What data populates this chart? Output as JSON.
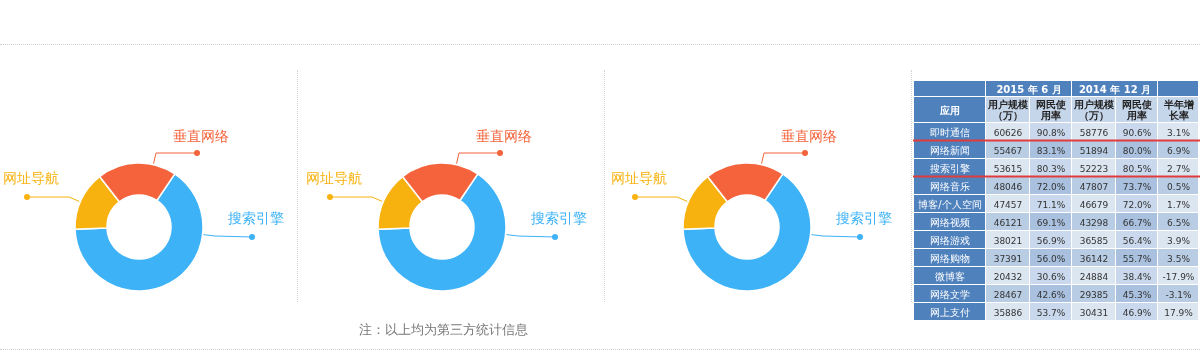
{
  "chart_data": [
    {
      "type": "donut",
      "categories": [
        "搜索引擎",
        "网址导航",
        "垂直网络"
      ],
      "values": [
        65,
        15,
        20
      ],
      "colors": [
        "#3db2f7",
        "#f7b20f",
        "#f4633c"
      ]
    },
    {
      "type": "donut",
      "categories": [
        "搜索引擎",
        "网址导航",
        "垂直网络"
      ],
      "values": [
        65,
        15,
        20
      ],
      "colors": [
        "#3db2f7",
        "#f7b20f",
        "#f4633c"
      ],
      "annotations": [
        "注：以上均为第三方统计信息"
      ]
    },
    {
      "type": "donut",
      "categories": [
        "搜索引擎",
        "网址导航",
        "垂直网络"
      ],
      "values": [
        65,
        15,
        20
      ],
      "colors": [
        "#3db2f7",
        "#f7b20f",
        "#f4633c"
      ]
    },
    {
      "type": "other",
      "color": "#4f81bd",
      "ylabel": "应用",
      "annotations": [
        "2015 年 6 月",
        "2014 年 12 月"
      ],
      "categories": [
        "用户规模（万）",
        "网民使用率",
        "用户规模（万）",
        "网民使用率",
        "半年增长率"
      ],
      "y_categories": [
        "即时通信",
        "网络新闻",
        "搜索引擎",
        "网络音乐",
        "博客/个人空间",
        "网络视频",
        "网络游戏",
        "网络购物",
        "微博客",
        "网络文学",
        "网上支付"
      ],
      "cell_labels": [
        [
          "60626",
          "90.8%",
          "58776",
          "90.6%",
          "3.1%"
        ],
        [
          "55467",
          "83.1%",
          "51894",
          "80.0%",
          "6.9%"
        ],
        [
          "53615",
          "80.3%",
          "52223",
          "80.5%",
          "2.7%"
        ],
        [
          "48046",
          "72.0%",
          "47807",
          "73.7%",
          "0.5%"
        ],
        [
          "47457",
          "71.1%",
          "46679",
          "72.0%",
          "1.7%"
        ],
        [
          "46121",
          "69.1%",
          "43298",
          "66.7%",
          "6.5%"
        ],
        [
          "38021",
          "56.9%",
          "36585",
          "56.4%",
          "3.9%"
        ],
        [
          "37391",
          "56.0%",
          "36142",
          "55.7%",
          "3.5%"
        ],
        [
          "20432",
          "30.6%",
          "24884",
          "38.4%",
          "-17.9%"
        ],
        [
          "28467",
          "42.6%",
          "29385",
          "45.3%",
          "-3.1%"
        ],
        [
          "35886",
          "53.7%",
          "30431",
          "46.9%",
          "17.9%"
        ]
      ]
    }
  ]
}
